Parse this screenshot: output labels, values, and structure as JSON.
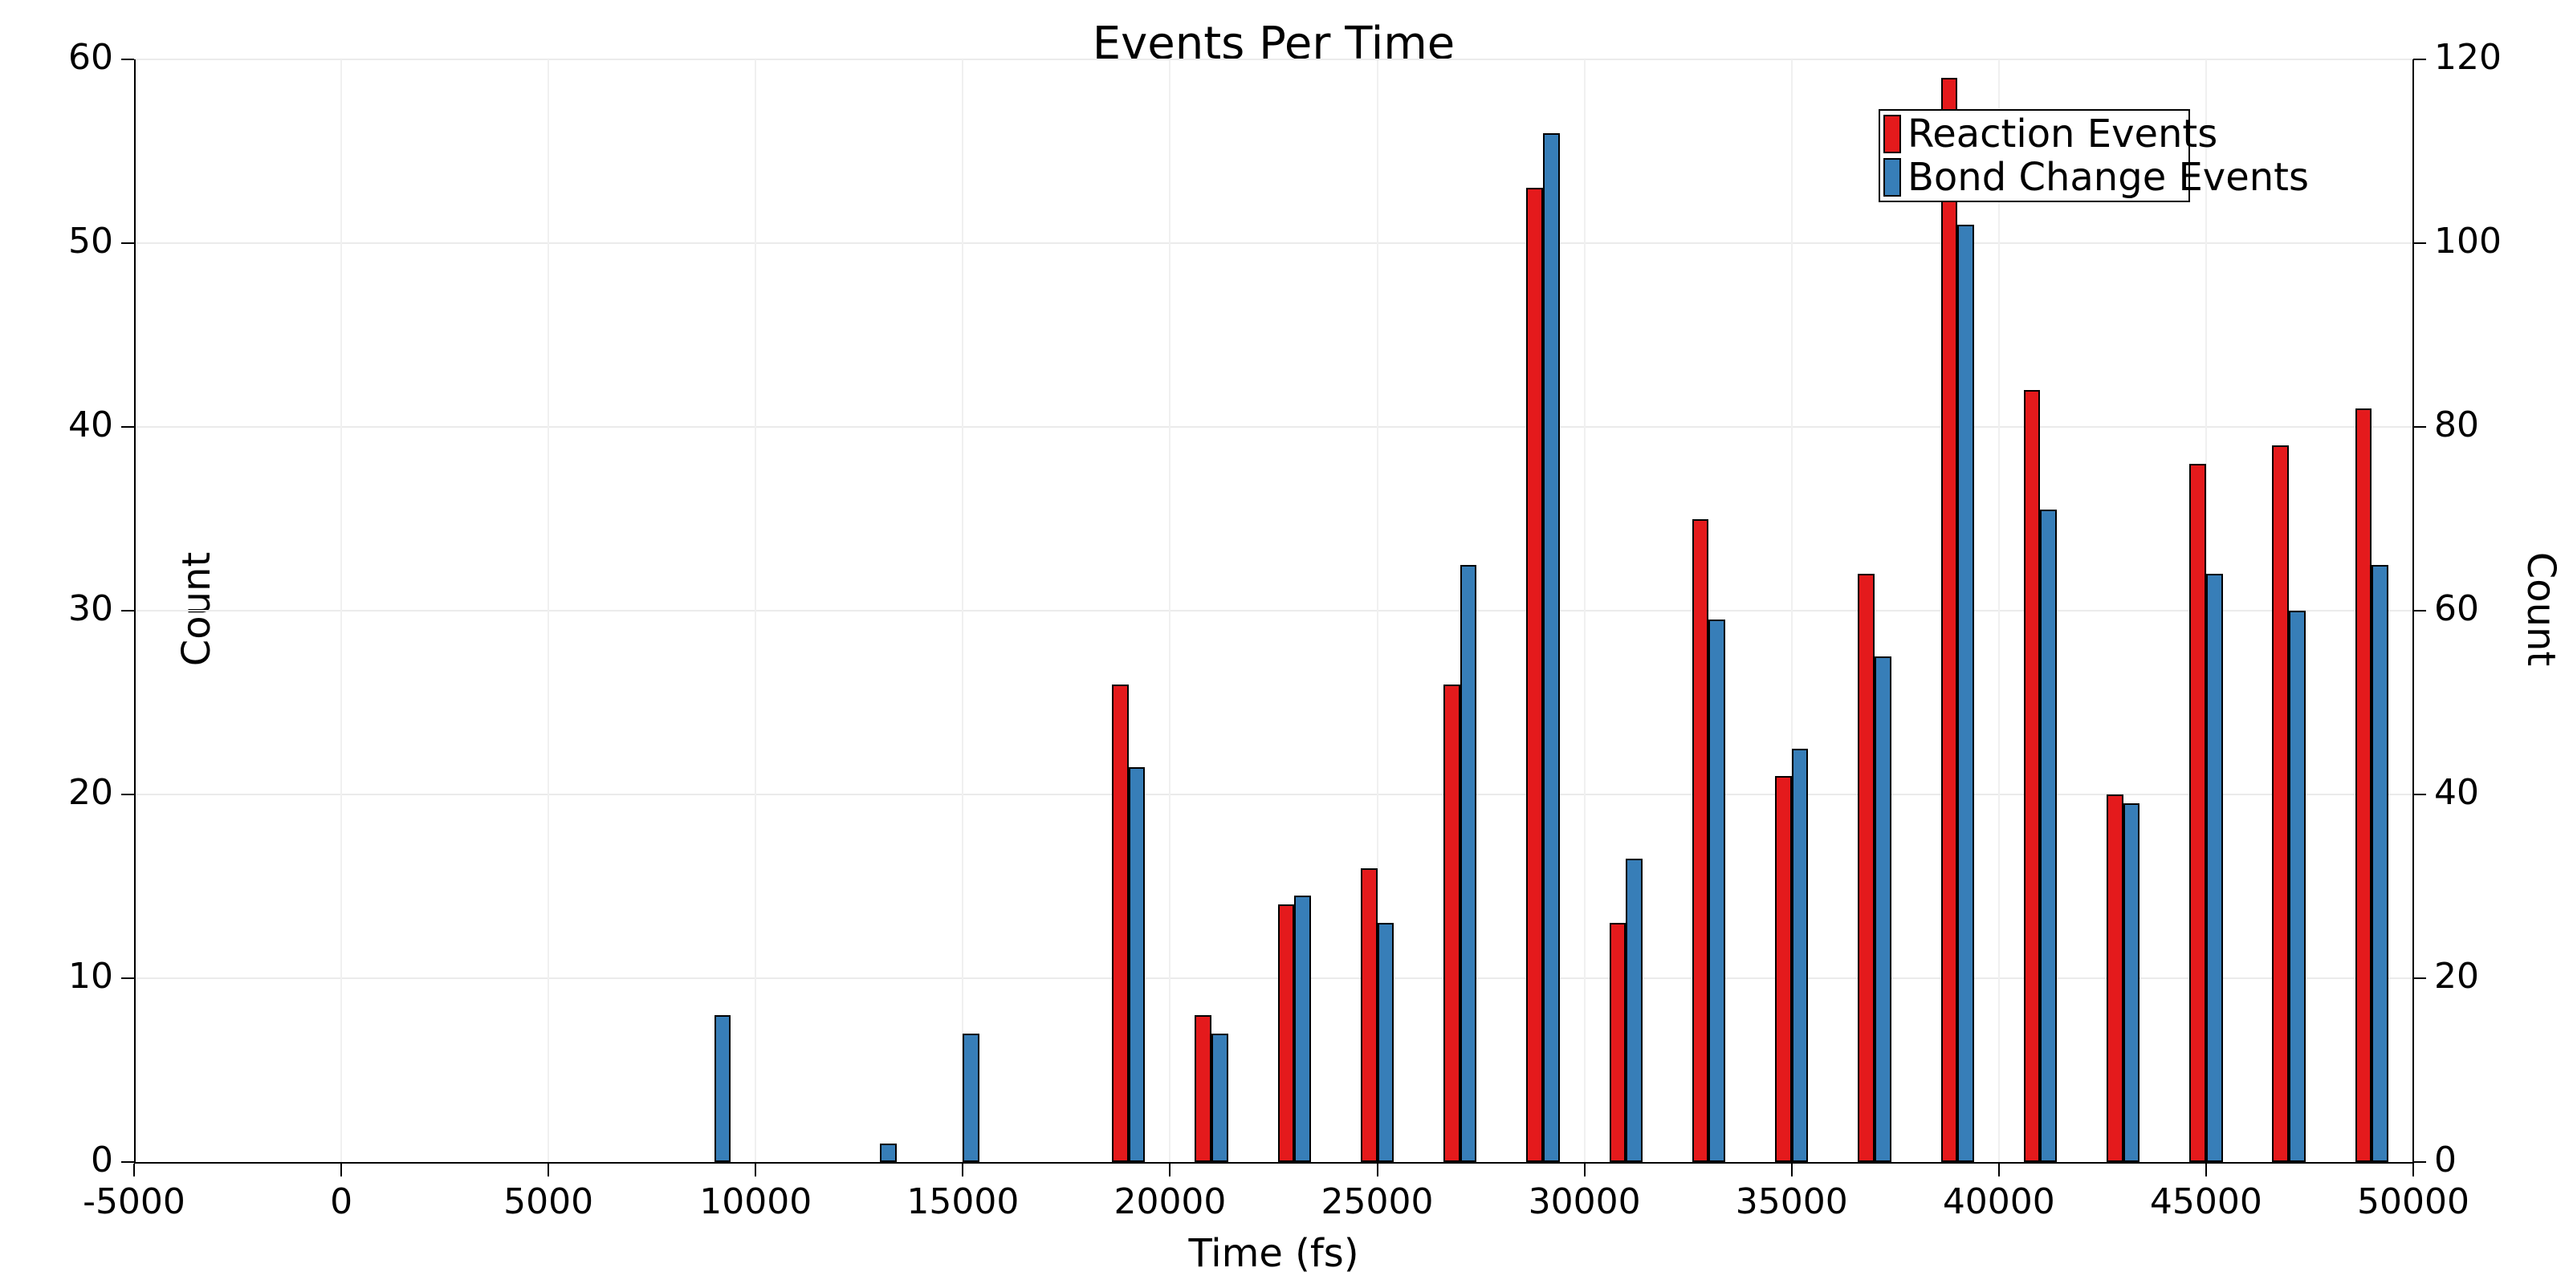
{
  "chart_data": {
    "type": "bar",
    "title": "Events Per Time",
    "xlabel": "Time (fs)",
    "ylabel_left": "Count",
    "ylabel_right": "Count",
    "xlim": [
      -5000,
      50000
    ],
    "ylim_left": [
      0,
      60
    ],
    "ylim_right": [
      0,
      120
    ],
    "bin_width_fs": 2000,
    "grid": true,
    "legend_position": "top-right",
    "xticks": [
      -5000,
      0,
      5000,
      10000,
      15000,
      20000,
      25000,
      30000,
      35000,
      40000,
      45000,
      50000
    ],
    "yticks_left": [
      0,
      10,
      20,
      30,
      40,
      50,
      60
    ],
    "yticks_right": [
      0,
      20,
      40,
      60,
      80,
      100,
      120
    ],
    "categories": [
      9000,
      13000,
      15000,
      19000,
      21000,
      23000,
      25000,
      27000,
      29000,
      31000,
      33000,
      35000,
      37000,
      39000,
      41000,
      43000,
      45000,
      47000,
      49000
    ],
    "series": [
      {
        "name": "Reaction Events",
        "axis": "left",
        "color": "#e41a1c",
        "values": [
          0,
          0,
          0,
          26,
          8,
          14,
          16,
          26,
          53,
          13,
          35,
          21,
          32,
          59,
          42,
          20,
          38,
          39,
          41
        ]
      },
      {
        "name": "Bond Change Events",
        "axis": "right",
        "color": "#377eb8",
        "values": [
          16,
          2,
          14,
          43,
          14,
          29,
          26,
          65,
          112,
          33,
          59,
          45,
          55,
          102,
          71,
          39,
          64,
          60,
          65
        ]
      }
    ]
  }
}
